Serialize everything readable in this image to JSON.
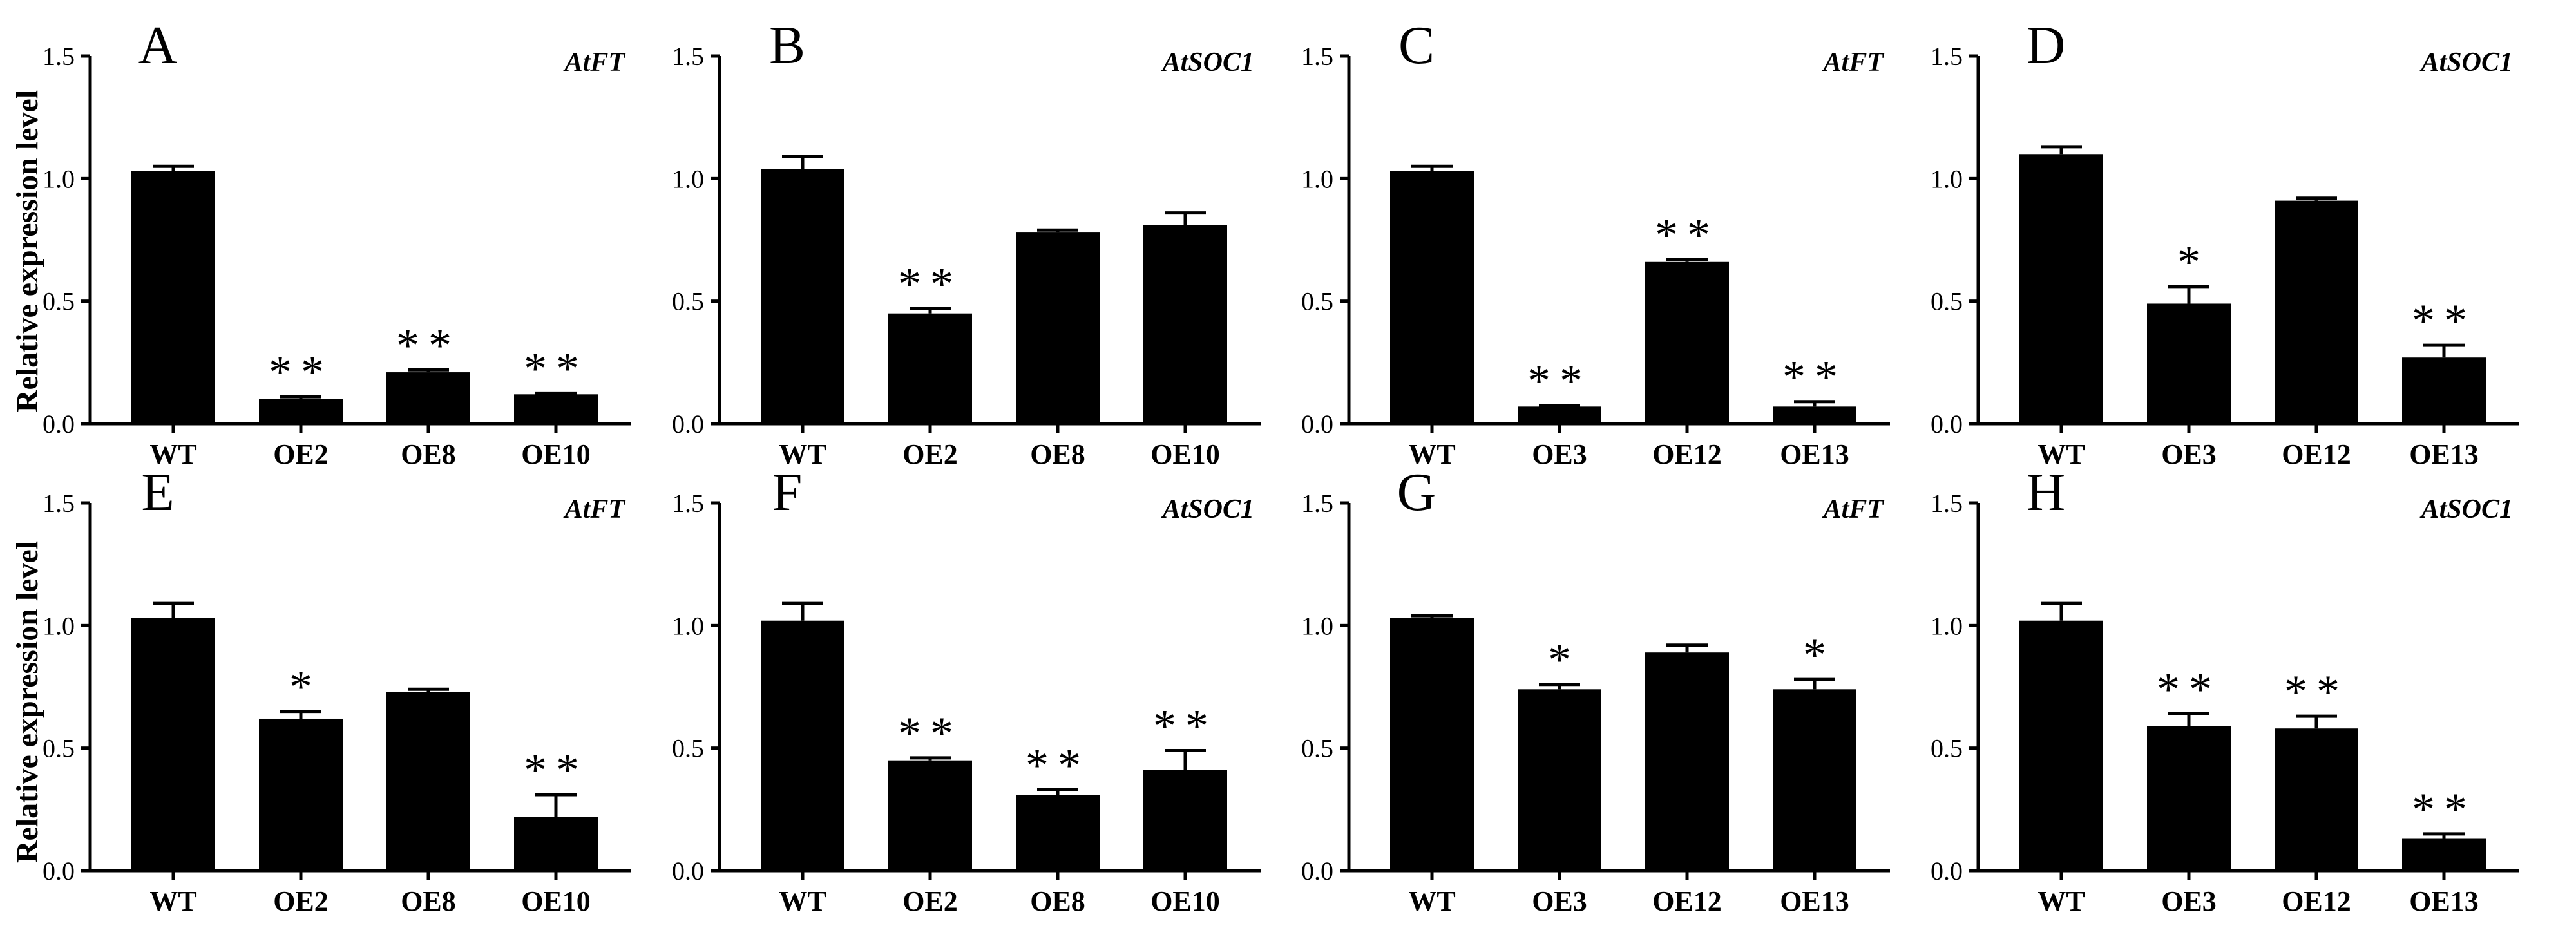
{
  "figure": {
    "ylabel": "Relative expression level",
    "colors": {
      "bar": "#000000",
      "axis": "#000000",
      "background": "#ffffff"
    }
  },
  "chart_data": [
    {
      "panel": "A",
      "gene": "AtFT",
      "type": "bar",
      "ylim": [
        0,
        1.5
      ],
      "yticks": [
        "0.0",
        "0.5",
        "1.0",
        "1.5"
      ],
      "categories": [
        "WT",
        "OE2",
        "OE8",
        "OE10"
      ],
      "values": [
        1.03,
        0.1,
        0.21,
        0.12
      ],
      "errors": [
        0.02,
        0.01,
        0.01,
        0.005
      ],
      "significance": [
        "",
        "**",
        "**",
        "**"
      ]
    },
    {
      "panel": "B",
      "gene": "AtSOC1",
      "type": "bar",
      "ylim": [
        0,
        1.5
      ],
      "yticks": [
        "0.0",
        "0.5",
        "1.0",
        "1.5"
      ],
      "categories": [
        "WT",
        "OE2",
        "OE8",
        "OE10"
      ],
      "values": [
        1.04,
        0.45,
        0.78,
        0.81
      ],
      "errors": [
        0.05,
        0.02,
        0.01,
        0.05
      ],
      "significance": [
        "",
        "**",
        "",
        ""
      ]
    },
    {
      "panel": "C",
      "gene": "AtFT",
      "type": "bar",
      "ylim": [
        0,
        1.5
      ],
      "yticks": [
        "0.0",
        "0.5",
        "1.0",
        "1.5"
      ],
      "categories": [
        "WT",
        "OE3",
        "OE12",
        "OE13"
      ],
      "values": [
        1.03,
        0.07,
        0.66,
        0.07
      ],
      "errors": [
        0.02,
        0.005,
        0.01,
        0.02
      ],
      "significance": [
        "",
        "**",
        "**",
        "**"
      ]
    },
    {
      "panel": "D",
      "gene": "AtSOC1",
      "type": "bar",
      "ylim": [
        0,
        1.5
      ],
      "yticks": [
        "0.0",
        "0.5",
        "1.0",
        "1.5"
      ],
      "categories": [
        "WT",
        "OE3",
        "OE12",
        "OE13"
      ],
      "values": [
        1.1,
        0.49,
        0.91,
        0.27
      ],
      "errors": [
        0.03,
        0.07,
        0.01,
        0.05
      ],
      "significance": [
        "",
        "*",
        "",
        "**"
      ]
    },
    {
      "panel": "E",
      "gene": "AtFT",
      "type": "bar",
      "ylim": [
        0,
        1.5
      ],
      "yticks": [
        "0.0",
        "0.5",
        "1.0",
        "1.5"
      ],
      "categories": [
        "WT",
        "OE2",
        "OE8",
        "OE10"
      ],
      "values": [
        1.03,
        0.62,
        0.73,
        0.22
      ],
      "errors": [
        0.06,
        0.03,
        0.01,
        0.09
      ],
      "significance": [
        "",
        "*",
        "",
        "**"
      ]
    },
    {
      "panel": "F",
      "gene": "AtSOC1",
      "type": "bar",
      "ylim": [
        0,
        1.5
      ],
      "yticks": [
        "0.0",
        "0.5",
        "1.0",
        "1.5"
      ],
      "categories": [
        "WT",
        "OE2",
        "OE8",
        "OE10"
      ],
      "values": [
        1.02,
        0.45,
        0.31,
        0.41
      ],
      "errors": [
        0.07,
        0.01,
        0.02,
        0.08
      ],
      "significance": [
        "",
        "**",
        "**",
        "**"
      ]
    },
    {
      "panel": "G",
      "gene": "AtFT",
      "type": "bar",
      "ylim": [
        0,
        1.5
      ],
      "yticks": [
        "0.0",
        "0.5",
        "1.0",
        "1.5"
      ],
      "categories": [
        "WT",
        "OE3",
        "OE12",
        "OE13"
      ],
      "values": [
        1.03,
        0.74,
        0.89,
        0.74
      ],
      "errors": [
        0.01,
        0.02,
        0.03,
        0.04
      ],
      "significance": [
        "",
        "*",
        "",
        "*"
      ]
    },
    {
      "panel": "H",
      "gene": "AtSOC1",
      "type": "bar",
      "ylim": [
        0,
        1.5
      ],
      "yticks": [
        "0.0",
        "0.5",
        "1.0",
        "1.5"
      ],
      "categories": [
        "WT",
        "OE3",
        "OE12",
        "OE13"
      ],
      "values": [
        1.02,
        0.59,
        0.58,
        0.13
      ],
      "errors": [
        0.07,
        0.05,
        0.05,
        0.02
      ],
      "significance": [
        "",
        "**",
        "**",
        "**"
      ]
    }
  ]
}
